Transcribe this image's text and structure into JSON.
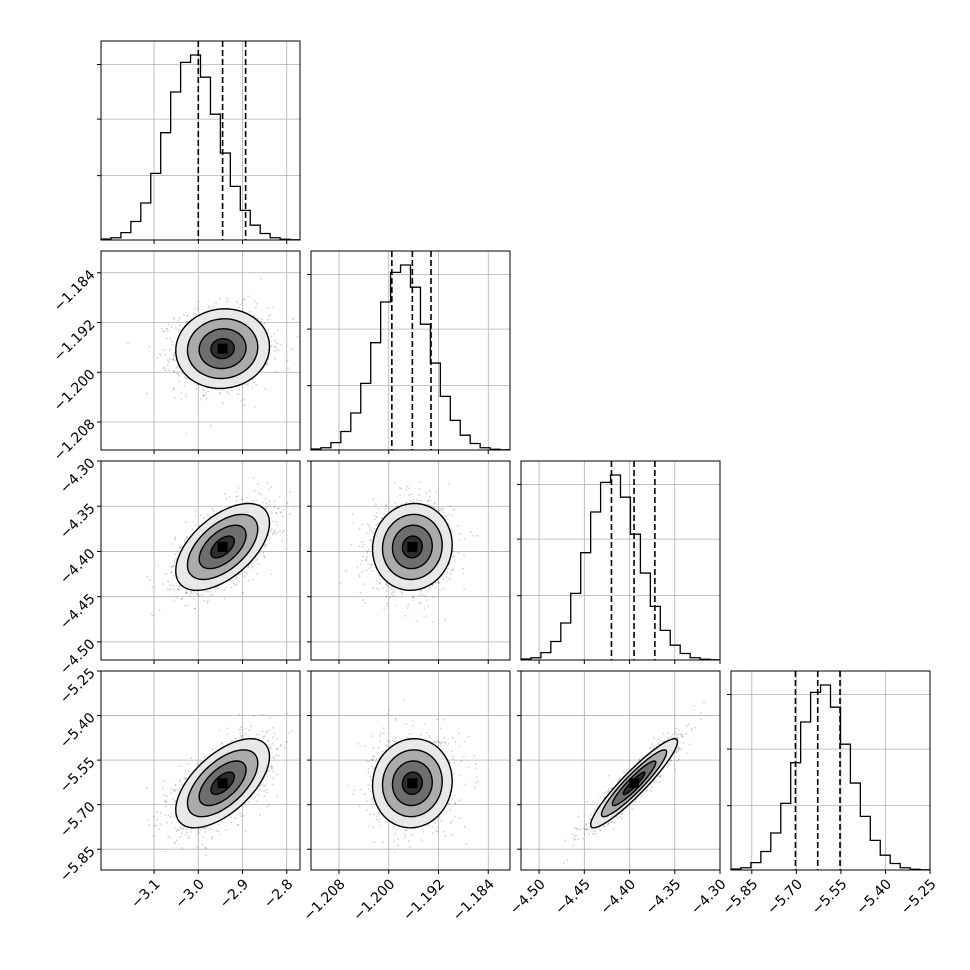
{
  "chart_data": {
    "type": "corner",
    "title": "",
    "parameters": [
      {
        "index": 0,
        "range": [
          -3.22,
          -2.77
        ],
        "ticks": [
          -3.1,
          -3.0,
          -2.9,
          -2.8
        ],
        "tick_labels": [
          "−3.1",
          "−3.0",
          "−2.9",
          "−2.8"
        ],
        "quantiles": [
          -3.0,
          -2.945,
          -2.893
        ],
        "mean": -2.945,
        "std": 0.053
      },
      {
        "index": 1,
        "range": [
          -1.2125,
          -1.1805
        ],
        "ticks": [
          -1.208,
          -1.2,
          -1.192,
          -1.184
        ],
        "tick_labels": [
          "−1.208",
          "−1.200",
          "−1.192",
          "−1.184"
        ],
        "quantiles": [
          -1.1995,
          -1.1962,
          -1.1932
        ],
        "mean": -1.1962,
        "std": 0.0032
      },
      {
        "index": 2,
        "range": [
          -4.52,
          -4.3
        ],
        "ticks": [
          -4.5,
          -4.45,
          -4.4,
          -4.35,
          -4.3
        ],
        "tick_labels": [
          "−4.50",
          "−4.45",
          "−4.40",
          "−4.35",
          "−4.30"
        ],
        "quantiles": [
          -4.42,
          -4.395,
          -4.372
        ],
        "mean": -4.395,
        "std": 0.024
      },
      {
        "index": 3,
        "range": [
          -5.92,
          -5.25
        ],
        "ticks": [
          -5.85,
          -5.7,
          -5.55,
          -5.4,
          -5.25
        ],
        "tick_labels": [
          "−5.85",
          "−5.70",
          "−5.55",
          "−5.40",
          "−5.25"
        ],
        "quantiles": [
          -5.703,
          -5.628,
          -5.553
        ],
        "mean": -5.628,
        "std": 0.075
      }
    ],
    "hist_shape": [
      0.005,
      0.012,
      0.04,
      0.1,
      0.2,
      0.36,
      0.58,
      0.8,
      0.96,
      1.0,
      0.88,
      0.68,
      0.47,
      0.29,
      0.16,
      0.08,
      0.035,
      0.012,
      0.004,
      0.001
    ],
    "correlations": [
      {
        "row": 1,
        "col": 0,
        "r": 0.05
      },
      {
        "row": 2,
        "col": 0,
        "r": 0.55
      },
      {
        "row": 2,
        "col": 1,
        "r": 0.05
      },
      {
        "row": 3,
        "col": 0,
        "r": 0.6
      },
      {
        "row": 3,
        "col": 1,
        "r": 0.05
      },
      {
        "row": 3,
        "col": 2,
        "r": 0.93
      }
    ],
    "contour_sigma_levels": [
      0.5,
      1.0,
      1.5,
      2.0
    ],
    "grid": true
  }
}
